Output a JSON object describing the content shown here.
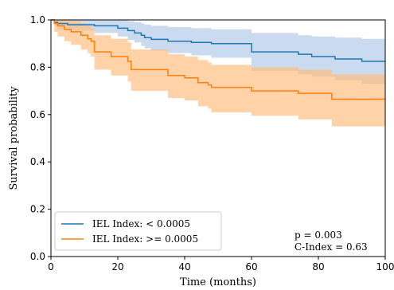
{
  "chart_data": {
    "type": "line",
    "xlabel": "Time (months)",
    "ylabel": "Survival probability",
    "xlim": [
      0,
      100
    ],
    "ylim": [
      0.0,
      1.0
    ],
    "x_ticks": [
      "0",
      "20",
      "40",
      "60",
      "80",
      "100"
    ],
    "y_ticks": [
      "0.0",
      "0.2",
      "0.4",
      "0.6",
      "0.8",
      "1.0"
    ],
    "grid": false,
    "legend_position": "bottom-left",
    "annotations": [
      "p = 0.003",
      "C-Index = 0.63"
    ],
    "series": [
      {
        "name": "IEL Index: < 0.0005",
        "color": "#1f77b4",
        "band_color": "#aec7e8",
        "steps": [
          [
            0,
            1.0
          ],
          [
            1,
            0.99
          ],
          [
            2,
            0.985
          ],
          [
            5,
            0.98
          ],
          [
            13,
            0.975
          ],
          [
            20,
            0.965
          ],
          [
            23,
            0.955
          ],
          [
            25,
            0.945
          ],
          [
            27,
            0.935
          ],
          [
            28,
            0.925
          ],
          [
            30,
            0.918
          ],
          [
            35,
            0.91
          ],
          [
            42,
            0.905
          ],
          [
            48,
            0.9
          ],
          [
            60,
            0.865
          ],
          [
            74,
            0.855
          ],
          [
            78,
            0.845
          ],
          [
            85,
            0.835
          ],
          [
            93,
            0.825
          ],
          [
            100,
            0.825
          ]
        ],
        "upper": [
          [
            0,
            1.0
          ],
          [
            1,
            1.0
          ],
          [
            2,
            1.0
          ],
          [
            5,
            1.0
          ],
          [
            13,
            1.0
          ],
          [
            20,
            1.0
          ],
          [
            23,
            0.995
          ],
          [
            25,
            0.99
          ],
          [
            27,
            0.985
          ],
          [
            28,
            0.98
          ],
          [
            30,
            0.975
          ],
          [
            35,
            0.97
          ],
          [
            42,
            0.965
          ],
          [
            48,
            0.96
          ],
          [
            60,
            0.945
          ],
          [
            74,
            0.935
          ],
          [
            78,
            0.93
          ],
          [
            85,
            0.925
          ],
          [
            93,
            0.92
          ],
          [
            100,
            0.92
          ]
        ],
        "lower": [
          [
            0,
            1.0
          ],
          [
            1,
            0.975
          ],
          [
            2,
            0.96
          ],
          [
            5,
            0.955
          ],
          [
            13,
            0.945
          ],
          [
            20,
            0.93
          ],
          [
            23,
            0.915
          ],
          [
            25,
            0.905
          ],
          [
            27,
            0.89
          ],
          [
            28,
            0.88
          ],
          [
            30,
            0.87
          ],
          [
            35,
            0.86
          ],
          [
            42,
            0.85
          ],
          [
            48,
            0.84
          ],
          [
            60,
            0.785
          ],
          [
            74,
            0.77
          ],
          [
            78,
            0.76
          ],
          [
            85,
            0.745
          ],
          [
            93,
            0.73
          ],
          [
            100,
            0.73
          ]
        ]
      },
      {
        "name": "IEL Index: >= 0.0005",
        "color": "#ff7f0e",
        "band_color": "#ffbb78",
        "steps": [
          [
            0,
            1.0
          ],
          [
            1,
            0.985
          ],
          [
            2,
            0.975
          ],
          [
            4,
            0.96
          ],
          [
            6,
            0.95
          ],
          [
            9,
            0.935
          ],
          [
            11,
            0.92
          ],
          [
            12,
            0.91
          ],
          [
            13,
            0.865
          ],
          [
            18,
            0.845
          ],
          [
            23,
            0.825
          ],
          [
            24,
            0.79
          ],
          [
            35,
            0.765
          ],
          [
            40,
            0.755
          ],
          [
            44,
            0.735
          ],
          [
            47,
            0.725
          ],
          [
            48,
            0.715
          ],
          [
            60,
            0.7
          ],
          [
            74,
            0.69
          ],
          [
            84,
            0.665
          ],
          [
            100,
            0.665
          ]
        ],
        "upper": [
          [
            0,
            1.0
          ],
          [
            1,
            1.0
          ],
          [
            2,
            1.0
          ],
          [
            4,
            1.0
          ],
          [
            6,
            0.995
          ],
          [
            9,
            0.985
          ],
          [
            11,
            0.975
          ],
          [
            12,
            0.965
          ],
          [
            13,
            0.935
          ],
          [
            18,
            0.92
          ],
          [
            23,
            0.905
          ],
          [
            24,
            0.875
          ],
          [
            35,
            0.855
          ],
          [
            40,
            0.845
          ],
          [
            44,
            0.83
          ],
          [
            47,
            0.82
          ],
          [
            48,
            0.81
          ],
          [
            60,
            0.8
          ],
          [
            74,
            0.79
          ],
          [
            84,
            0.77
          ],
          [
            100,
            0.77
          ]
        ],
        "lower": [
          [
            0,
            1.0
          ],
          [
            1,
            0.95
          ],
          [
            2,
            0.93
          ],
          [
            4,
            0.91
          ],
          [
            6,
            0.895
          ],
          [
            9,
            0.875
          ],
          [
            11,
            0.86
          ],
          [
            12,
            0.845
          ],
          [
            13,
            0.79
          ],
          [
            18,
            0.765
          ],
          [
            23,
            0.74
          ],
          [
            24,
            0.7
          ],
          [
            35,
            0.67
          ],
          [
            40,
            0.66
          ],
          [
            44,
            0.635
          ],
          [
            47,
            0.625
          ],
          [
            48,
            0.61
          ],
          [
            60,
            0.595
          ],
          [
            74,
            0.58
          ],
          [
            84,
            0.55
          ],
          [
            100,
            0.55
          ]
        ]
      }
    ]
  }
}
